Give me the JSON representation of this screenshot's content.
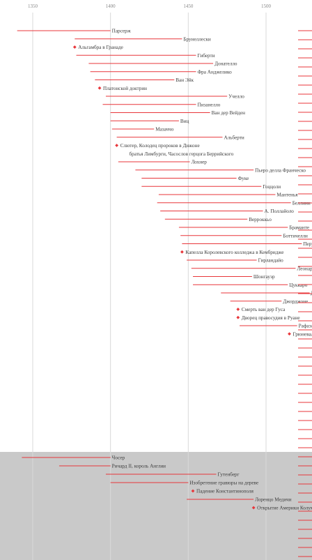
{
  "colors": {
    "line": "#e8363a",
    "grid": "#d9d9d9",
    "band": "#c9c9c9",
    "text": "#3a3a3a",
    "tick": "#888888"
  },
  "chart_data": {
    "type": "timeline",
    "xlim": [
      1340,
      1530
    ],
    "ticks": [
      1350,
      1400,
      1450,
      1500
    ],
    "events": [
      {
        "label": "Парсерж",
        "start": 1340,
        "end": 1400,
        "kind": "bar",
        "band": 0
      },
      {
        "label": "Брунеллески",
        "start": 1377,
        "end": 1446,
        "kind": "bar",
        "band": 0
      },
      {
        "label": "Альгамбра в Гранаде",
        "start": 1377,
        "kind": "point",
        "band": 0
      },
      {
        "label": "Гиберти",
        "start": 1378,
        "end": 1455,
        "kind": "bar",
        "band": 0
      },
      {
        "label": "Донателло",
        "start": 1386,
        "end": 1466,
        "kind": "bar",
        "band": 0
      },
      {
        "label": "Фра Анджелико",
        "start": 1387,
        "end": 1455,
        "kind": "bar",
        "band": 0
      },
      {
        "label": "Ван Эйк",
        "start": 1390,
        "end": 1441,
        "kind": "bar",
        "band": 0
      },
      {
        "label": "Платонской доктрин",
        "start": 1393,
        "kind": "point",
        "band": 0
      },
      {
        "label": "Учелло",
        "start": 1397,
        "end": 1475,
        "kind": "bar",
        "band": 0
      },
      {
        "label": "Пизанелло",
        "start": 1395,
        "end": 1455,
        "kind": "bar",
        "band": 0
      },
      {
        "label": "Ван дер Вейден",
        "start": 1400,
        "end": 1464,
        "kind": "bar",
        "band": 0
      },
      {
        "label": "Виц",
        "start": 1400,
        "end": 1444,
        "kind": "bar",
        "band": 0
      },
      {
        "label": "Мазаччо",
        "start": 1401,
        "end": 1428,
        "kind": "bar",
        "band": 0
      },
      {
        "label": "Альберти",
        "start": 1404,
        "end": 1472,
        "kind": "bar",
        "band": 0
      },
      {
        "label": "Слютер, Колодец пророков в Дижоне",
        "start": 1404,
        "kind": "point",
        "band": 0
      },
      {
        "label": "братья Лимбурги, Часослов герцога Беррийского",
        "start": 1412,
        "kind": "note",
        "band": 0
      },
      {
        "label": "Лохнер",
        "start": 1405,
        "end": 1451,
        "kind": "bar",
        "band": 0
      },
      {
        "label": "Пьеро делла Франческо",
        "start": 1416,
        "end": 1492,
        "kind": "bar",
        "band": 0
      },
      {
        "label": "Фуке",
        "start": 1420,
        "end": 1481,
        "kind": "bar",
        "band": 0
      },
      {
        "label": "Гоццоли",
        "start": 1420,
        "end": 1497,
        "kind": "bar",
        "band": 0
      },
      {
        "label": "Мантенья",
        "start": 1431,
        "end": 1506,
        "kind": "bar",
        "band": 0
      },
      {
        "label": "Беллини",
        "start": 1430,
        "end": 1516,
        "kind": "bar",
        "band": 0
      },
      {
        "label": "А. Поллайоло",
        "start": 1432,
        "end": 1498,
        "kind": "bar",
        "band": 0
      },
      {
        "label": "Верроккьо",
        "start": 1435,
        "end": 1488,
        "kind": "bar",
        "band": 0
      },
      {
        "label": "Браманте",
        "start": 1444,
        "end": 1514,
        "kind": "bar",
        "band": 0
      },
      {
        "label": "Боттичелли",
        "start": 1445,
        "end": 1510,
        "kind": "bar",
        "band": 0
      },
      {
        "label": "Перуджино",
        "start": 1446,
        "end": 1523,
        "kind": "bar",
        "band": 0
      },
      {
        "label": "Капелла Королевского колледжа в Кембридже",
        "start": 1446,
        "kind": "point",
        "band": 0
      },
      {
        "label": "Гирландайо",
        "start": 1449,
        "end": 1494,
        "kind": "bar",
        "band": 0
      },
      {
        "label": "Леонардо",
        "start": 1452,
        "end": 1519,
        "kind": "bar",
        "band": 0
      },
      {
        "label": "Шонгауэр",
        "start": 1453,
        "end": 1491,
        "kind": "bar",
        "band": 0
      },
      {
        "label": "Цуккаро",
        "start": 1453,
        "end": 1514,
        "kind": "bar",
        "band": 0
      },
      {
        "label": "Дюрер",
        "start": 1471,
        "end": 1528,
        "kind": "bar",
        "band": 0
      },
      {
        "label": "Джорджоне",
        "start": 1477,
        "end": 1510,
        "kind": "bar",
        "band": 0
      },
      {
        "label": "Смерть ван дер Гуса",
        "start": 1482,
        "kind": "point",
        "band": 0
      },
      {
        "label": "Дворец правосудия в Руане",
        "start": 1482,
        "kind": "point",
        "band": 0
      },
      {
        "label": "Рафаэль",
        "start": 1483,
        "end": 1520,
        "kind": "bar",
        "band": 0
      },
      {
        "label": "Грюневальд",
        "start": 1515,
        "kind": "point",
        "band": 0
      },
      {
        "label": "Чосер",
        "start": 1343,
        "end": 1400,
        "kind": "bar",
        "band": 1
      },
      {
        "label": "Ричард II, король Англии",
        "start": 1367,
        "end": 1400,
        "kind": "bar",
        "band": 1
      },
      {
        "label": "Гутенберг",
        "start": 1397,
        "end": 1468,
        "kind": "bar",
        "band": 1
      },
      {
        "label": "Изобретение гравюры на дереве",
        "start": 1400,
        "end": 1450,
        "kind": "bar",
        "band": 1
      },
      {
        "label": "Падение Константинополя",
        "start": 1453,
        "kind": "point",
        "band": 1
      },
      {
        "label": "Лоренцо Медичи",
        "start": 1449,
        "end": 1492,
        "kind": "bar",
        "band": 1
      },
      {
        "label": "Открытие Америки Колумбом",
        "start": 1492,
        "kind": "point",
        "band": 1
      }
    ]
  }
}
